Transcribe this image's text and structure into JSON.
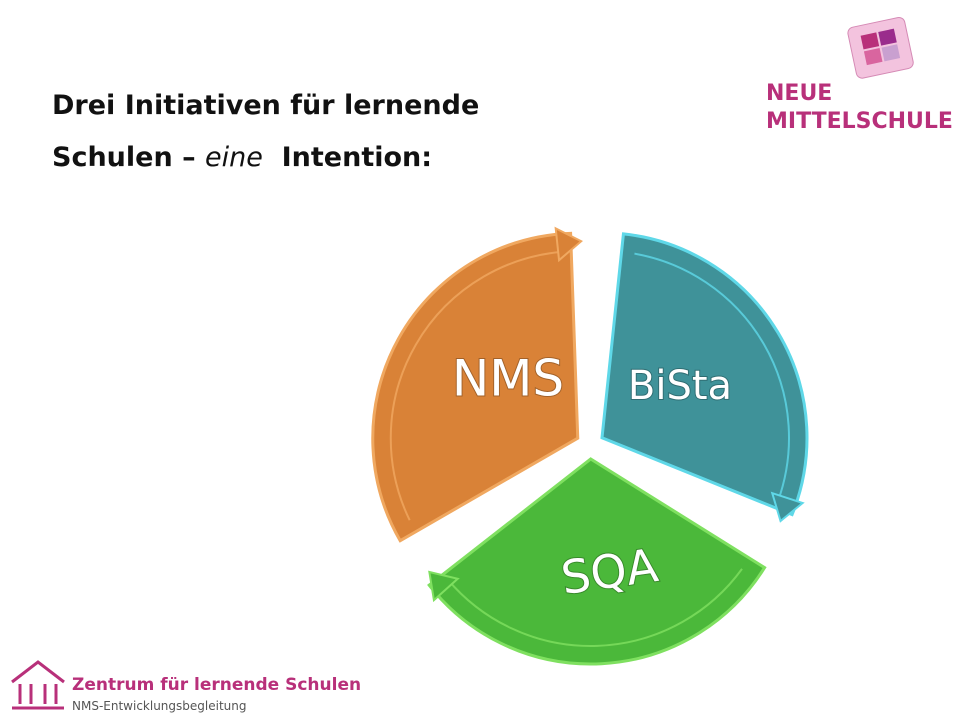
{
  "header": {
    "title": {
      "line1": "Drei Initiativen für lernende",
      "line2_before": "Schulen – ",
      "line2_emphasis": "eine",
      "line2_after": "  Intention:"
    },
    "logo": {
      "line1": "NEUE",
      "line2": "MITTELSCHULE"
    }
  },
  "nodes": [
    {
      "label": "NMS"
    },
    {
      "label": "BiSta"
    },
    {
      "label": "SQA"
    }
  ],
  "footer": {
    "title": "Zentrum für lernende Schulen",
    "subtitle": "NMS-Entwicklungsbegleitung"
  }
}
